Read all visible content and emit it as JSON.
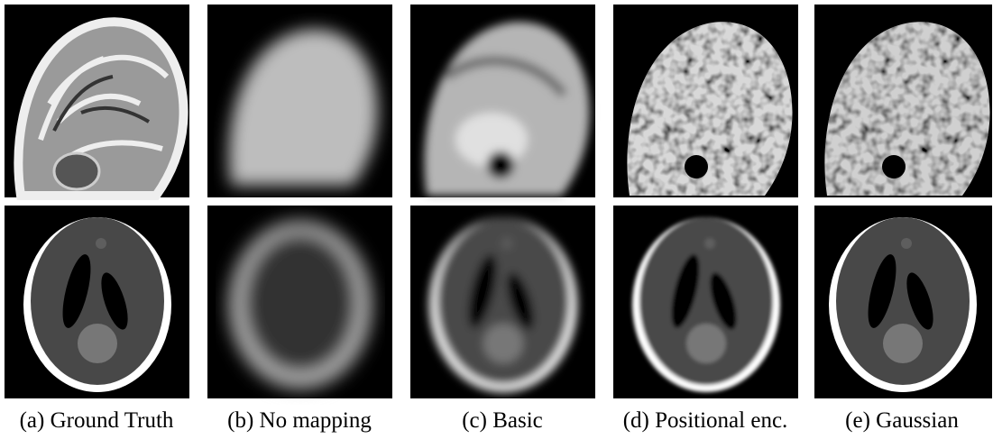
{
  "captions": [
    "(a) Ground Truth",
    "(b) No mapping",
    "(c) Basic",
    "(d) Positional enc.",
    "(e) Gaussian"
  ]
}
